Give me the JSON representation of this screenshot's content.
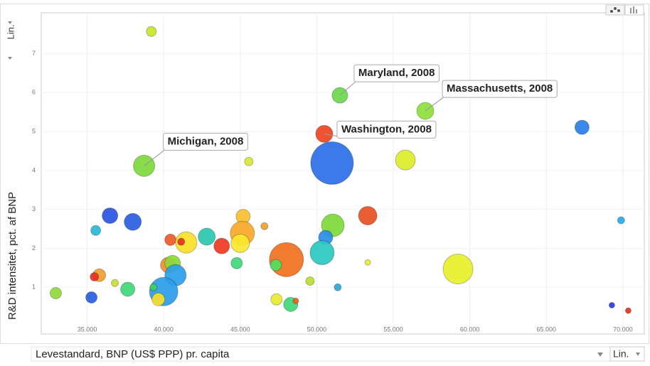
{
  "chart_data": {
    "type": "bubble",
    "x_axis_label": "Levestandard, BNP (US$ PPP) pr. capita",
    "y_axis_label": "R&D intensitet, pct. af BNP",
    "x_scale": "Lin.",
    "y_scale": "Lin.",
    "xlim": [
      32000,
      71400
    ],
    "ylim": [
      -0.2,
      8.05
    ],
    "xticks": [
      {
        "value": 35000,
        "label": "35.000"
      },
      {
        "value": 40000,
        "label": "40.000"
      },
      {
        "value": 45000,
        "label": "45.000"
      },
      {
        "value": 50000,
        "label": "50.000"
      },
      {
        "value": 55000,
        "label": "55.000"
      },
      {
        "value": 60000,
        "label": "60.000"
      },
      {
        "value": 65000,
        "label": "65.000"
      },
      {
        "value": 70000,
        "label": "70.000"
      }
    ],
    "yticks": [
      1,
      2,
      3,
      4,
      5,
      6,
      7
    ],
    "grid": true,
    "x": [
      39190,
      38720,
      51510,
      57090,
      50490,
      51000,
      55790,
      67330,
      45560,
      36490,
      37980,
      35560,
      53330,
      51050,
      45190,
      46580,
      45140,
      69880,
      40440,
      42810,
      41470,
      41140,
      50580,
      43790,
      45000,
      50350,
      48020,
      47330,
      44770,
      40300,
      40580,
      40770,
      53330,
      59230,
      35790,
      35470,
      36810,
      37650,
      32950,
      35280,
      40000,
      39330,
      39650,
      49560,
      51370,
      47370,
      48300,
      48630,
      69280,
      70350
    ],
    "values": [
      7.57,
      4.12,
      5.93,
      5.53,
      4.94,
      4.19,
      4.27,
      5.11,
      4.23,
      2.84,
      2.68,
      2.46,
      2.84,
      2.59,
      2.82,
      2.57,
      2.39,
      2.72,
      2.22,
      2.3,
      2.15,
      2.17,
      2.28,
      2.06,
      2.13,
      1.89,
      1.71,
      1.57,
      1.62,
      1.57,
      1.62,
      1.31,
      1.64,
      1.47,
      1.31,
      1.27,
      1.11,
      0.95,
      0.85,
      0.74,
      0.89,
      1.0,
      0.69,
      1.16,
      1.0,
      0.69,
      0.56,
      0.65,
      0.54,
      0.4
    ],
    "sizes": [
      7,
      15,
      11,
      12,
      12,
      30,
      14,
      10,
      6,
      11,
      12,
      7,
      13,
      16,
      10,
      5,
      17,
      5,
      8,
      12,
      15,
      5,
      10,
      11,
      13,
      17,
      24,
      8,
      8,
      11,
      11,
      15,
      4,
      21,
      9,
      6,
      5,
      10,
      8,
      8,
      20,
      5,
      9,
      6,
      5,
      8,
      10,
      4,
      4,
      4
    ],
    "colors": [
      "#c8e62a",
      "#7ed83a",
      "#6ad84a",
      "#8ce03c",
      "#ee4422",
      "#2b6fe8",
      "#dcec2a",
      "#2a7de8",
      "#d8e830",
      "#2a55e0",
      "#2a5ee0",
      "#2ab8d8",
      "#e85022",
      "#7ed83a",
      "#f8c030",
      "#f0a030",
      "#f8a828",
      "#2aa8e8",
      "#ee5a28",
      "#2ac8b0",
      "#f8e028",
      "#e83020",
      "#2a8ce8",
      "#ee3a20",
      "#f8e830",
      "#2ac8c0",
      "#f07020",
      "#50e060",
      "#40d878",
      "#f09030",
      "#8cd838",
      "#2aa0e8",
      "#e8e830",
      "#e8f028",
      "#f0a030",
      "#e83020",
      "#c8e030",
      "#40d878",
      "#90d838",
      "#2a5ee0",
      "#2a9ce8",
      "#40d060",
      "#f8e028",
      "#b8e030",
      "#2aa8d8",
      "#e8e830",
      "#40d878",
      "#f06020",
      "#2a3ce0",
      "#e83020"
    ],
    "point_labels": [
      null,
      "Michigan, 2008",
      "Maryland, 2008",
      "Massachusetts, 2008",
      "Washington, 2008",
      null,
      null,
      null,
      null,
      null,
      null,
      null,
      null,
      null,
      null,
      null,
      null,
      null,
      null,
      null,
      null,
      null,
      null,
      null,
      null,
      null,
      null,
      null,
      null,
      null,
      null,
      null,
      null,
      null,
      null,
      null,
      null,
      null,
      null,
      null,
      null,
      null,
      null,
      null,
      null,
      null,
      null,
      null,
      null,
      null
    ]
  }
}
